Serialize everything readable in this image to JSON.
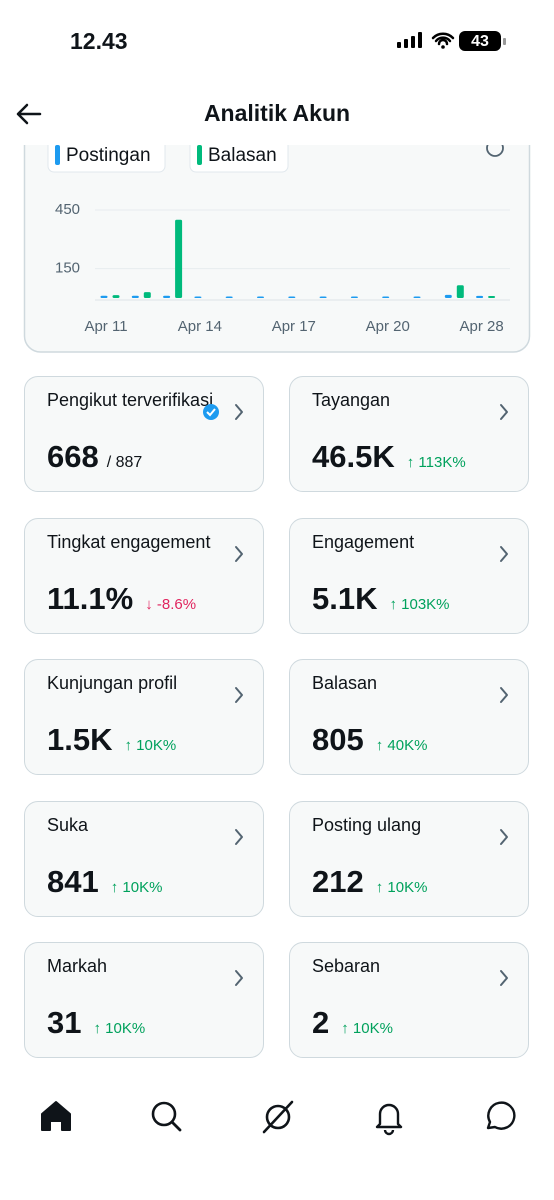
{
  "status_bar": {
    "time": "12.43",
    "battery": "43"
  },
  "header": {
    "title": "Analitik Akun"
  },
  "chart_data": {
    "type": "bar",
    "categories": [
      "Apr 11",
      null,
      null,
      "Apr 14",
      null,
      null,
      "Apr 17",
      null,
      null,
      "Apr 20",
      null,
      null,
      "Apr 28"
    ],
    "series": [
      {
        "name": "Postingan",
        "color": "#1d9bf0",
        "values": [
          4,
          4,
          4,
          0,
          0,
          0,
          0,
          0,
          0,
          0,
          0,
          8,
          3
        ]
      },
      {
        "name": "Balasan",
        "color": "#00ba7c",
        "values": [
          15,
          30,
          400,
          0,
          0,
          0,
          0,
          0,
          0,
          0,
          0,
          65,
          10
        ]
      }
    ],
    "ylim": [
      0,
      450
    ],
    "yticks": [
      150,
      450
    ],
    "grid": true
  },
  "cards": [
    {
      "label": "Pengikut terverifikasi",
      "value": "668",
      "sub": "/ 887",
      "verified": true
    },
    {
      "label": "Tayangan",
      "value": "46.5K",
      "change": "↑ 113K%",
      "trend": "up"
    },
    {
      "label": "Tingkat engagement",
      "value": "11.1%",
      "change": "↓ -8.6%",
      "trend": "down"
    },
    {
      "label": "Engagement",
      "value": "5.1K",
      "change": "↑ 103K%",
      "trend": "up"
    },
    {
      "label": "Kunjungan profil",
      "value": "1.5K",
      "change": "↑ 10K%",
      "trend": "up"
    },
    {
      "label": "Balasan",
      "value": "805",
      "change": "↑ 40K%",
      "trend": "up"
    },
    {
      "label": "Suka",
      "value": "841",
      "change": "↑ 10K%",
      "trend": "up"
    },
    {
      "label": "Posting ulang",
      "value": "212",
      "change": "↑ 10K%",
      "trend": "up"
    },
    {
      "label": "Markah",
      "value": "31",
      "change": "↑ 10K%",
      "trend": "up"
    },
    {
      "label": "Sebaran",
      "value": "2",
      "change": "↑ 10K%",
      "trend": "up"
    }
  ]
}
